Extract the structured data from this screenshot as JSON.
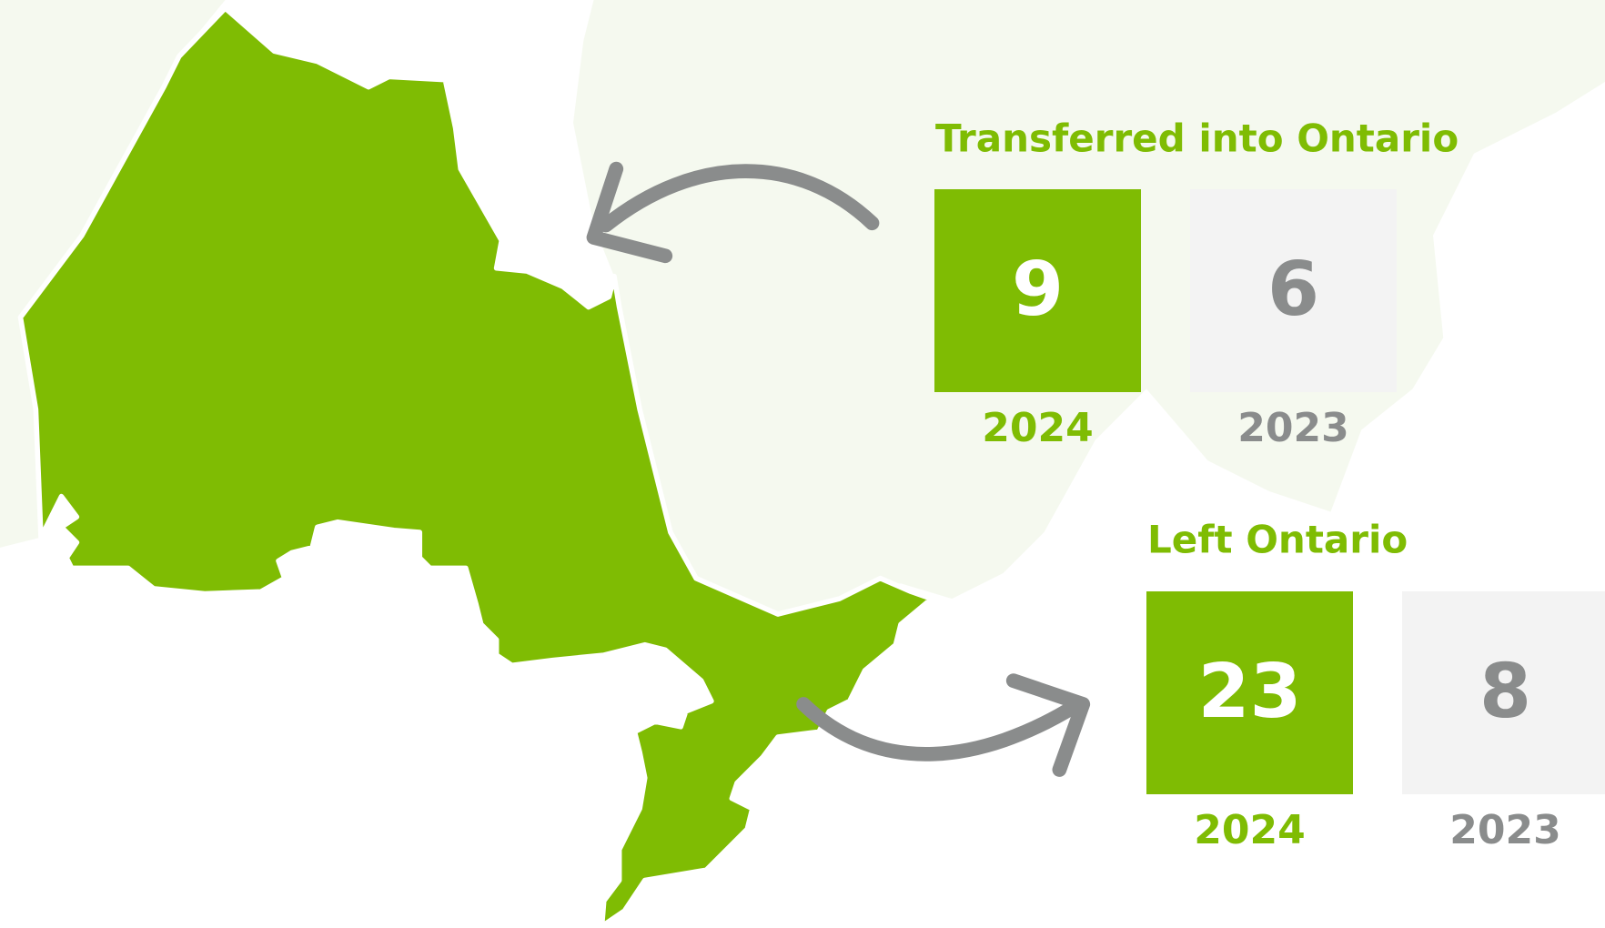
{
  "sections": [
    {
      "title": "Transferred into Ontario",
      "items": [
        {
          "year": "2024",
          "value": 9
        },
        {
          "year": "2023",
          "value": 6
        }
      ]
    },
    {
      "title": "Left Ontario",
      "items": [
        {
          "year": "2024",
          "value": 23
        },
        {
          "year": "2023",
          "value": 8
        }
      ]
    }
  ]
}
